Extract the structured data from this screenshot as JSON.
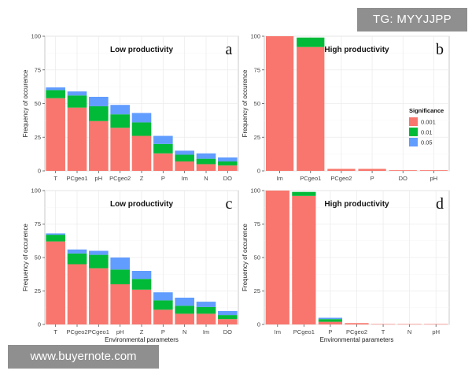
{
  "watermarks": {
    "top_right": "TG: MYYJJPP",
    "bottom_left": "www.buyernote.com"
  },
  "legend": {
    "title": "Significance",
    "entries": [
      "0.001",
      "0.01",
      "0.05"
    ],
    "colors": [
      "#f8766d",
      "#00ba38",
      "#619cff"
    ]
  },
  "chart_data": [
    {
      "type": "bar",
      "stacked": true,
      "panel": "a",
      "title": "Low productivity",
      "ylabel": "Frequency of occurence",
      "xlabel": "",
      "ylim": [
        0,
        100
      ],
      "yticks": [
        0,
        25,
        50,
        75,
        100
      ],
      "grid": true,
      "categories": [
        "T",
        "PCgeo1",
        "pH",
        "PCgeo2",
        "Z",
        "P",
        "Im",
        "N",
        "DO"
      ],
      "series": [
        {
          "name": "0.001",
          "values": [
            54,
            47,
            37,
            32,
            26,
            13,
            7,
            5,
            4
          ]
        },
        {
          "name": "0.01",
          "values": [
            6,
            9,
            11,
            10,
            10,
            7,
            5,
            4,
            3
          ]
        },
        {
          "name": "0.05",
          "values": [
            2,
            3,
            7,
            7,
            7,
            6,
            3,
            4,
            3
          ]
        }
      ]
    },
    {
      "type": "bar",
      "stacked": true,
      "panel": "b",
      "title": "High productivity",
      "ylabel": "Frequency of occurence",
      "xlabel": "",
      "ylim": [
        0,
        100
      ],
      "yticks": [
        0,
        25,
        50,
        75,
        100
      ],
      "grid": true,
      "categories": [
        "Im",
        "PCgeo1",
        "PCgeo2",
        "P",
        "DO",
        "pH"
      ],
      "series": [
        {
          "name": "0.001",
          "values": [
            100,
            92,
            1.5,
            1.5,
            0.5,
            0.5
          ]
        },
        {
          "name": "0.01",
          "values": [
            0,
            7,
            0,
            0,
            0,
            0
          ]
        },
        {
          "name": "0.05",
          "values": [
            0,
            0,
            0,
            0,
            0,
            0
          ]
        }
      ]
    },
    {
      "type": "bar",
      "stacked": true,
      "panel": "c",
      "title": "Low productivity",
      "ylabel": "Frequency of occurence",
      "xlabel": "Environmental parameters",
      "ylim": [
        0,
        100
      ],
      "yticks": [
        0,
        25,
        50,
        75,
        100
      ],
      "grid": true,
      "categories": [
        "T",
        "PCgeo2",
        "PCgeo1",
        "pH",
        "Z",
        "P",
        "N",
        "Im",
        "DO"
      ],
      "series": [
        {
          "name": "0.001",
          "values": [
            62,
            45,
            42,
            30,
            26,
            11,
            8,
            8,
            4
          ]
        },
        {
          "name": "0.01",
          "values": [
            5,
            8,
            10,
            11,
            8,
            7,
            6,
            5,
            3
          ]
        },
        {
          "name": "0.05",
          "values": [
            1,
            3,
            3,
            9,
            6,
            6,
            6,
            4,
            3
          ]
        }
      ]
    },
    {
      "type": "bar",
      "stacked": true,
      "panel": "d",
      "title": "High productivity",
      "ylabel": "Frequency of occurence",
      "xlabel": "Environmental parameters",
      "ylim": [
        0,
        100
      ],
      "yticks": [
        0,
        25,
        50,
        75,
        100
      ],
      "grid": true,
      "categories": [
        "Im",
        "PCgeo1",
        "P",
        "PCgeo2",
        "T",
        "N",
        "pH"
      ],
      "series": [
        {
          "name": "0.001",
          "values": [
            100,
            96,
            2,
            1,
            0.3,
            0.3,
            0.3
          ]
        },
        {
          "name": "0.01",
          "values": [
            0,
            3,
            2,
            0,
            0,
            0,
            0
          ]
        },
        {
          "name": "0.05",
          "values": [
            0,
            0,
            1,
            0,
            0,
            0,
            0
          ]
        }
      ]
    }
  ]
}
